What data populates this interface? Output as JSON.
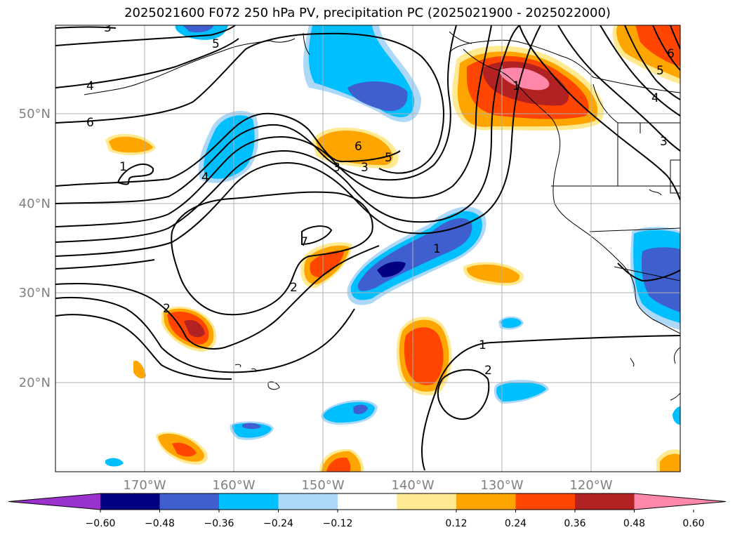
{
  "title": "2025021600 F072 250 hPa PV, precipitation PC (2025021900 - 2025022000)",
  "map": {
    "latitude_labels": [
      "50°N",
      "40°N",
      "30°N",
      "20°N"
    ],
    "longitude_labels": [
      "170°W",
      "160°W",
      "150°W",
      "140°W",
      "130°W",
      "120°W"
    ],
    "contour_labels": [
      "3",
      "5",
      "4",
      "6",
      "1",
      "4",
      "3",
      "6",
      "3",
      "5",
      "7",
      "1",
      "2",
      "1",
      "2",
      "1",
      "2",
      "6",
      "5",
      "4",
      "3"
    ]
  },
  "colorbar": {
    "tick_labels": [
      "−0.60",
      "−0.48",
      "−0.36",
      "−0.24",
      "−0.12",
      "0.12",
      "0.24",
      "0.36",
      "0.48",
      "0.60"
    ],
    "colors": [
      "#9a32cd",
      "#000080",
      "#3f5fcf",
      "#00bfff",
      "#add8f7",
      "#ffffff",
      "#ffe991",
      "#ffa500",
      "#ff4500",
      "#b22222",
      "#ff88aa"
    ]
  }
}
